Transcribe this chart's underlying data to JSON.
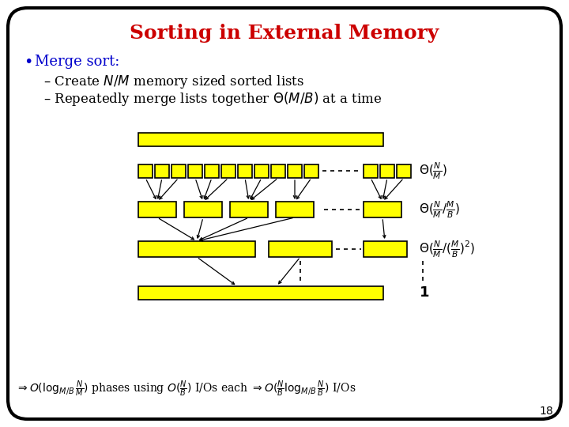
{
  "title": "Sorting in External Memory",
  "title_color": "#cc0000",
  "title_fontsize": 18,
  "bg_color": "#ffffff",
  "border_color": "#000000",
  "bullet_color": "#0000cc",
  "bullet_text": "Merge sort:",
  "sub1": "– Create $N/M$ memory sized sorted lists",
  "sub2": "– Repeatedly merge lists together $\\Theta(M/B)$ at a time",
  "yellow": "#ffff00",
  "black": "#000000",
  "page_number": "18",
  "theta1": "$\\Theta(\\frac{N}{M})$",
  "theta2": "$\\Theta(\\frac{N}{M}/\\frac{M}{B})$",
  "theta3": "$\\Theta(\\frac{N}{M}/(\\frac{M}{B})^2)$",
  "label4": "$\\mathbf{1}$",
  "bottom_formula": "$\\Rightarrow O(\\log_{M/B} \\frac{N}{M})$ phases using $O(\\frac{N}{B})$ I/Os each $\\Rightarrow O(\\frac{N}{B} \\log_{M/B} \\frac{N}{B})$ I/Os"
}
